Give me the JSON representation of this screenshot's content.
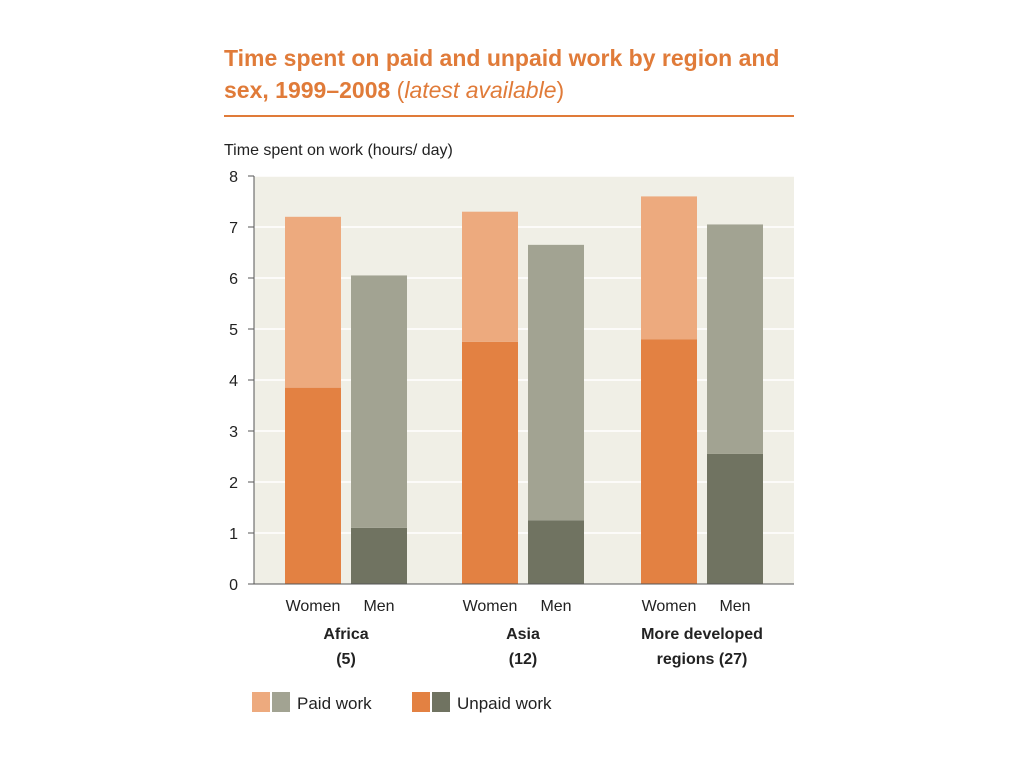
{
  "chart_data": {
    "type": "bar",
    "stacked": true,
    "title": "Time spent on paid and unpaid work by region and sex, 1999–2008",
    "title_italic": "latest available",
    "ylabel": "Time spent on work (hours/ day)",
    "ylim": [
      0,
      8
    ],
    "yticks": [
      "0",
      "1",
      "2",
      "3",
      "4",
      "5",
      "6",
      "7",
      "8"
    ],
    "grid": true,
    "groups": [
      {
        "name": "Africa",
        "count": "(5)",
        "name_lines": [
          "Africa",
          "(5)"
        ]
      },
      {
        "name": "Asia",
        "count": "(12)",
        "name_lines": [
          "Asia",
          "(12)"
        ]
      },
      {
        "name": "More developed regions",
        "count": "(27)",
        "name_lines": [
          "More developed",
          "regions (27)"
        ]
      }
    ],
    "categories": [
      "Women",
      "Men",
      "Women",
      "Men",
      "Women",
      "Men"
    ],
    "series": [
      {
        "name": "Unpaid work",
        "values": [
          3.85,
          1.1,
          4.75,
          1.25,
          4.8,
          2.55
        ]
      },
      {
        "name": "Paid work",
        "values": [
          3.35,
          4.95,
          2.55,
          5.4,
          2.8,
          4.5
        ]
      }
    ],
    "totals": [
      7.2,
      6.05,
      7.3,
      6.65,
      7.6,
      7.05
    ],
    "legend_position": "bottom-left",
    "colors": {
      "women_unpaid": "#e38142",
      "women_paid": "#edaa7e",
      "men_unpaid": "#707361",
      "men_paid": "#a2a392",
      "plot_bg": "#f0efe6",
      "title": "#e07b39"
    }
  }
}
